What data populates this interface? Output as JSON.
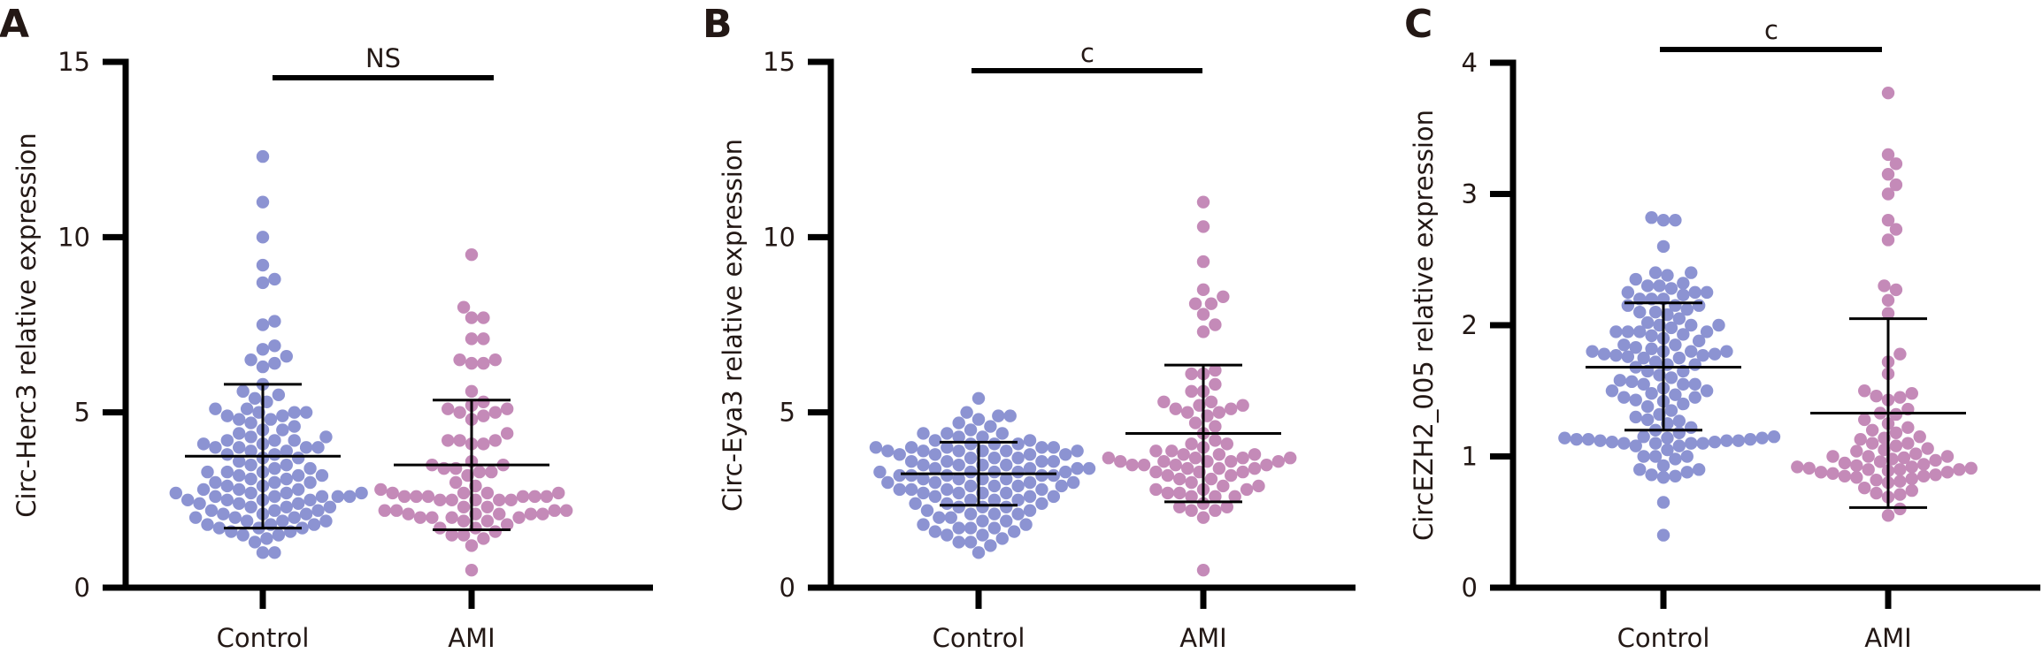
{
  "colors": {
    "control": "#8c93d2",
    "ami": "#c48ab8",
    "axis": "#000000",
    "text": "#231815"
  },
  "chart_data": [
    {
      "type": "scatter",
      "panel_label": "A",
      "title": "",
      "xlabel": "",
      "ylabel": "Circ-Herc3 relative expression",
      "ylim": [
        0,
        15
      ],
      "yticks": [
        "0",
        "5",
        "10",
        "15"
      ],
      "ytick_values": [
        0,
        5,
        10,
        15
      ],
      "categories": [
        "Control",
        "AMI"
      ],
      "significance": "NS",
      "series": [
        {
          "name": "Control",
          "mean": 3.75,
          "sd_upper": 5.8,
          "sd_lower": 1.7,
          "values": [
            12.3,
            11.0,
            10.0,
            9.2,
            8.8,
            8.7,
            7.6,
            7.5,
            6.9,
            6.8,
            6.6,
            6.5,
            6.4,
            6.3,
            5.8,
            5.6,
            5.5,
            5.4,
            5.3,
            5.1,
            5.1,
            5.0,
            5.0,
            5.0,
            4.9,
            4.9,
            4.8,
            4.8,
            4.7,
            4.6,
            4.5,
            4.5,
            4.4,
            4.3,
            4.3,
            4.2,
            4.2,
            4.2,
            4.1,
            4.1,
            4.0,
            4.0,
            4.0,
            4.0,
            3.9,
            3.9,
            3.8,
            3.8,
            3.7,
            3.7,
            3.6,
            3.5,
            3.5,
            3.4,
            3.4,
            3.3,
            3.3,
            3.3,
            3.2,
            3.2,
            3.2,
            3.1,
            3.1,
            3.0,
            3.0,
            3.0,
            2.9,
            2.9,
            2.8,
            2.8,
            2.8,
            2.7,
            2.7,
            2.7,
            2.7,
            2.6,
            2.6,
            2.6,
            2.6,
            2.6,
            2.5,
            2.5,
            2.5,
            2.5,
            2.4,
            2.4,
            2.4,
            2.3,
            2.3,
            2.3,
            2.2,
            2.2,
            2.2,
            2.1,
            2.1,
            2.1,
            2.0,
            2.0,
            2.0,
            1.9,
            1.9,
            1.9,
            1.8,
            1.8,
            1.8,
            1.7,
            1.7,
            1.7,
            1.6,
            1.6,
            1.5,
            1.5,
            1.4,
            1.3,
            1.0,
            1.0
          ]
        },
        {
          "name": "AMI",
          "mean": 3.5,
          "sd_upper": 5.35,
          "sd_lower": 1.65,
          "values": [
            9.5,
            8.0,
            7.7,
            7.7,
            7.1,
            7.1,
            6.5,
            6.5,
            6.4,
            6.4,
            5.6,
            5.3,
            5.2,
            5.1,
            5.1,
            5.0,
            5.0,
            4.9,
            4.8,
            4.4,
            4.2,
            4.2,
            4.2,
            4.1,
            4.1,
            3.6,
            3.5,
            3.5,
            3.4,
            3.4,
            3.3,
            3.3,
            3.2,
            3.0,
            2.9,
            2.8,
            2.7,
            2.7,
            2.7,
            2.7,
            2.6,
            2.6,
            2.6,
            2.6,
            2.6,
            2.6,
            2.5,
            2.5,
            2.5,
            2.5,
            2.5,
            2.3,
            2.3,
            2.2,
            2.2,
            2.2,
            2.2,
            2.1,
            2.1,
            2.1,
            2.1,
            2.1,
            2.0,
            2.0,
            2.0,
            2.0,
            1.9,
            1.9,
            1.8,
            1.7,
            1.7,
            1.6,
            1.5,
            1.5,
            1.4,
            1.2,
            0.5
          ]
        }
      ]
    },
    {
      "type": "scatter",
      "panel_label": "B",
      "title": "",
      "xlabel": "",
      "ylabel": "Circ-Eya3 relative expression",
      "ylim": [
        0,
        15
      ],
      "yticks": [
        "0",
        "5",
        "10",
        "15"
      ],
      "ytick_values": [
        0,
        5,
        10,
        15
      ],
      "categories": [
        "Control",
        "AMI"
      ],
      "significance": "c",
      "series": [
        {
          "name": "Control",
          "mean": 3.25,
          "sd_upper": 4.15,
          "sd_lower": 2.35,
          "values": [
            5.4,
            5.0,
            4.9,
            4.9,
            4.8,
            4.7,
            4.6,
            4.5,
            4.4,
            4.4,
            4.4,
            4.3,
            4.3,
            4.2,
            4.2,
            4.1,
            4.1,
            4.1,
            4.0,
            4.0,
            4.0,
            4.0,
            4.0,
            3.9,
            3.9,
            3.9,
            3.9,
            3.9,
            3.9,
            3.8,
            3.8,
            3.8,
            3.8,
            3.7,
            3.7,
            3.7,
            3.6,
            3.6,
            3.6,
            3.6,
            3.5,
            3.5,
            3.5,
            3.5,
            3.4,
            3.4,
            3.4,
            3.4,
            3.3,
            3.3,
            3.3,
            3.3,
            3.3,
            3.2,
            3.2,
            3.2,
            3.2,
            3.2,
            3.1,
            3.1,
            3.1,
            3.1,
            3.0,
            3.0,
            3.0,
            3.0,
            2.9,
            2.9,
            2.9,
            2.9,
            2.8,
            2.8,
            2.8,
            2.8,
            2.7,
            2.7,
            2.7,
            2.7,
            2.6,
            2.6,
            2.6,
            2.5,
            2.5,
            2.5,
            2.4,
            2.4,
            2.4,
            2.3,
            2.3,
            2.3,
            2.2,
            2.2,
            2.1,
            2.1,
            2.1,
            2.0,
            2.0,
            1.9,
            1.9,
            1.8,
            1.8,
            1.7,
            1.7,
            1.7,
            1.6,
            1.6,
            1.5,
            1.5,
            1.4,
            1.3,
            1.3,
            1.2,
            1.0
          ]
        },
        {
          "name": "AMI",
          "mean": 4.4,
          "sd_upper": 6.35,
          "sd_lower": 2.45,
          "values": [
            11.0,
            10.3,
            9.3,
            8.5,
            8.3,
            8.1,
            8.1,
            7.8,
            7.5,
            7.3,
            6.2,
            6.1,
            6.1,
            5.8,
            5.6,
            5.6,
            5.3,
            5.3,
            5.2,
            5.2,
            5.1,
            5.1,
            5.0,
            5.0,
            4.9,
            4.7,
            4.6,
            4.4,
            4.2,
            4.1,
            4.1,
            4.0,
            3.9,
            3.9,
            3.8,
            3.8,
            3.8,
            3.7,
            3.7,
            3.7,
            3.7,
            3.6,
            3.6,
            3.6,
            3.6,
            3.6,
            3.5,
            3.5,
            3.5,
            3.5,
            3.4,
            3.4,
            3.4,
            3.3,
            3.3,
            3.3,
            3.2,
            3.2,
            3.1,
            3.1,
            3.0,
            2.9,
            2.9,
            2.8,
            2.8,
            2.8,
            2.7,
            2.7,
            2.6,
            2.6,
            2.6,
            2.4,
            2.3,
            2.3,
            2.2,
            2.2,
            2.0,
            0.5
          ]
        }
      ]
    },
    {
      "type": "scatter",
      "panel_label": "C",
      "title": "",
      "xlabel": "",
      "ylabel": "CircEZH2_005 relative expression",
      "ylim": [
        0,
        4
      ],
      "yticks": [
        "0",
        "1",
        "2",
        "3",
        "4"
      ],
      "ytick_values": [
        0,
        1,
        2,
        3,
        4
      ],
      "categories": [
        "Control",
        "AMI"
      ],
      "significance": "c",
      "series": [
        {
          "name": "Control",
          "mean": 1.68,
          "sd_upper": 2.17,
          "sd_lower": 1.2,
          "values": [
            2.82,
            2.8,
            2.8,
            2.6,
            2.4,
            2.4,
            2.38,
            2.35,
            2.32,
            2.3,
            2.3,
            2.28,
            2.25,
            2.25,
            2.25,
            2.23,
            2.2,
            2.2,
            2.2,
            2.15,
            2.15,
            2.15,
            2.12,
            2.1,
            2.1,
            2.08,
            2.05,
            2.02,
            2.0,
            2.0,
            2.0,
            1.98,
            1.95,
            1.95,
            1.95,
            1.95,
            1.93,
            1.92,
            1.9,
            1.88,
            1.85,
            1.85,
            1.83,
            1.82,
            1.8,
            1.8,
            1.8,
            1.8,
            1.78,
            1.78,
            1.77,
            1.77,
            1.76,
            1.75,
            1.75,
            1.72,
            1.7,
            1.7,
            1.68,
            1.65,
            1.65,
            1.62,
            1.6,
            1.58,
            1.57,
            1.55,
            1.55,
            1.55,
            1.52,
            1.5,
            1.5,
            1.48,
            1.47,
            1.45,
            1.45,
            1.43,
            1.42,
            1.4,
            1.38,
            1.35,
            1.32,
            1.3,
            1.28,
            1.27,
            1.25,
            1.22,
            1.2,
            1.18,
            1.15,
            1.15,
            1.14,
            1.14,
            1.14,
            1.13,
            1.13,
            1.13,
            1.12,
            1.12,
            1.12,
            1.11,
            1.11,
            1.1,
            1.1,
            1.1,
            1.1,
            1.08,
            1.08,
            1.05,
            1.0,
            1.0,
            1.0,
            0.98,
            0.93,
            0.9,
            0.9,
            0.88,
            0.86,
            0.85,
            0.84,
            0.65,
            0.4
          ]
        },
        {
          "name": "AMI",
          "mean": 1.33,
          "sd_upper": 2.05,
          "sd_lower": 0.61,
          "values": [
            3.77,
            3.3,
            3.23,
            3.15,
            3.07,
            3.0,
            2.8,
            2.73,
            2.65,
            2.3,
            2.27,
            2.19,
            2.09,
            1.78,
            1.72,
            1.63,
            1.5,
            1.48,
            1.46,
            1.45,
            1.43,
            1.36,
            1.33,
            1.32,
            1.28,
            1.25,
            1.22,
            1.2,
            1.18,
            1.15,
            1.14,
            1.13,
            1.1,
            1.1,
            1.08,
            1.06,
            1.05,
            1.04,
            1.02,
            1.0,
            1.0,
            1.0,
            0.99,
            0.98,
            0.97,
            0.96,
            0.95,
            0.94,
            0.93,
            0.92,
            0.92,
            0.91,
            0.91,
            0.9,
            0.9,
            0.9,
            0.89,
            0.88,
            0.88,
            0.87,
            0.86,
            0.85,
            0.85,
            0.84,
            0.83,
            0.82,
            0.81,
            0.8,
            0.76,
            0.74,
            0.72,
            0.71,
            0.69,
            0.6,
            0.55
          ]
        }
      ]
    }
  ]
}
